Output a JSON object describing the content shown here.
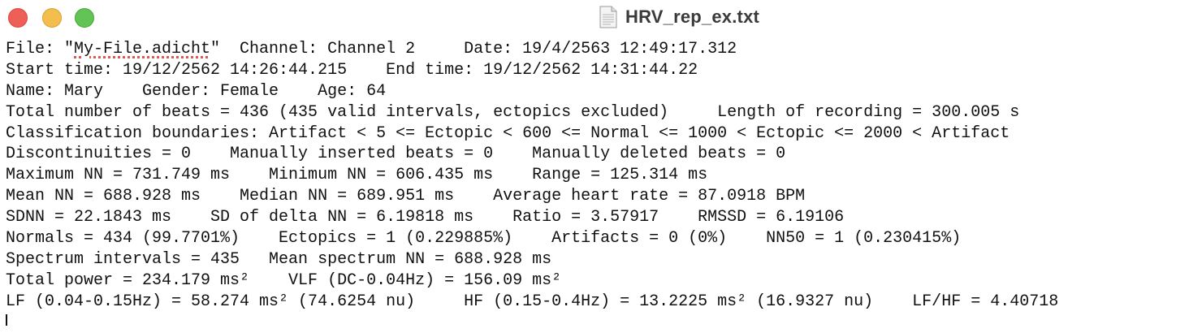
{
  "window": {
    "title": "HRV_rep_ex.txt",
    "traffic_colors": {
      "close": "#ee5f57",
      "minimize": "#f4be4f",
      "maximize": "#61c454"
    },
    "title_icon": "document-icon"
  },
  "report": {
    "line1": {
      "pre": "File: \"",
      "file": "My-File.adicht",
      "post": "\"  Channel: Channel 2     Date: 19/4/2563 12:49:17.312"
    },
    "line2": "Start time: 19/12/2562 14:26:44.215    End time: 19/12/2562 14:31:44.22",
    "line3": "Name: Mary    Gender: Female    Age: 64",
    "line4": "Total number of beats = 436 (435 valid intervals, ectopics excluded)     Length of recording = 300.005 s",
    "line5": "Classification boundaries: Artifact < 5 <= Ectopic < 600 <= Normal <= 1000 < Ectopic <= 2000 < Artifact",
    "line6": "Discontinuities = 0    Manually inserted beats = 0    Manually deleted beats = 0",
    "line7": "Maximum NN = 731.749 ms    Minimum NN = 606.435 ms    Range = 125.314 ms",
    "line8": "Mean NN = 688.928 ms    Median NN = 689.951 ms    Average heart rate = 87.0918 BPM",
    "line9": "SDNN = 22.1843 ms    SD of delta NN = 6.19818 ms    Ratio = 3.57917    RMSSD = 6.19106",
    "line10": "Normals = 434 (99.7701%)    Ectopics = 1 (0.229885%)    Artifacts = 0 (0%)    NN50 = 1 (0.230415%)",
    "line11": "Spectrum intervals = 435   Mean spectrum NN = 688.928 ms",
    "line12": "Total power = 234.179 ms²    VLF (DC-0.04Hz) = 156.09 ms²",
    "line13": "LF (0.04-0.15Hz) = 58.274 ms² (74.6254 nu)     HF (0.15-0.4Hz) = 13.2225 ms² (16.9327 nu)    LF/HF = 4.40718"
  }
}
